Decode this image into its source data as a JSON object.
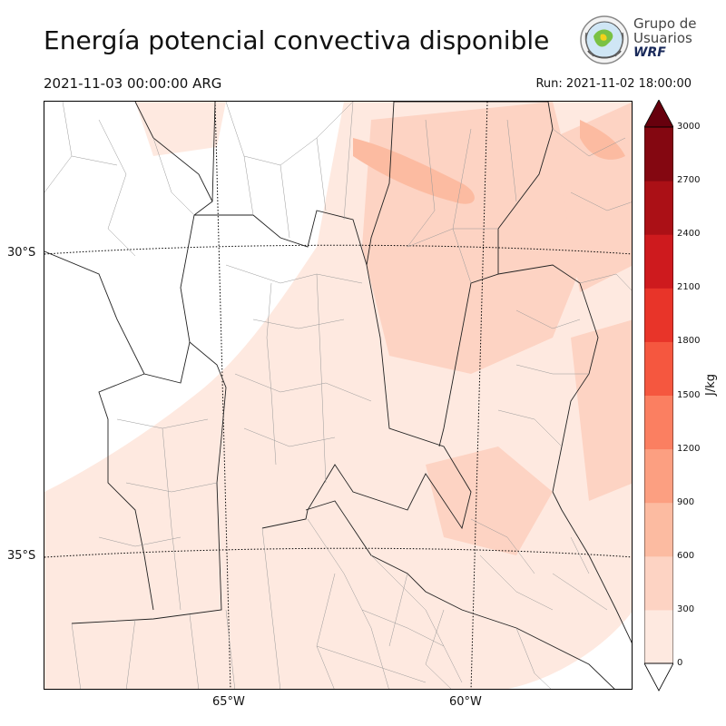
{
  "title": "Energía potencial convectiva disponible",
  "valid_time": "2021-11-03 00:00:00 ARG",
  "run_time": "Run: 2021-11-02 18:00:00",
  "logo": {
    "line1": "Grupo de",
    "line2": "Usuarios",
    "line3": "WRF"
  },
  "map": {
    "lat_labels": [
      "30°S",
      "35°S"
    ],
    "lon_labels": [
      "65°W",
      "60°W"
    ]
  },
  "colorbar": {
    "unit": "J/kg",
    "ticks": [
      "0",
      "300",
      "600",
      "900",
      "1200",
      "1500",
      "1800",
      "2100",
      "2400",
      "2700",
      "3000"
    ],
    "colors": [
      "#fee9e0",
      "#fdd3c3",
      "#fcbba1",
      "#fc9f81",
      "#fb7f61",
      "#f5573f",
      "#e83429",
      "#ce1a1e",
      "#ab1016",
      "#840711",
      "#67000d"
    ]
  }
}
